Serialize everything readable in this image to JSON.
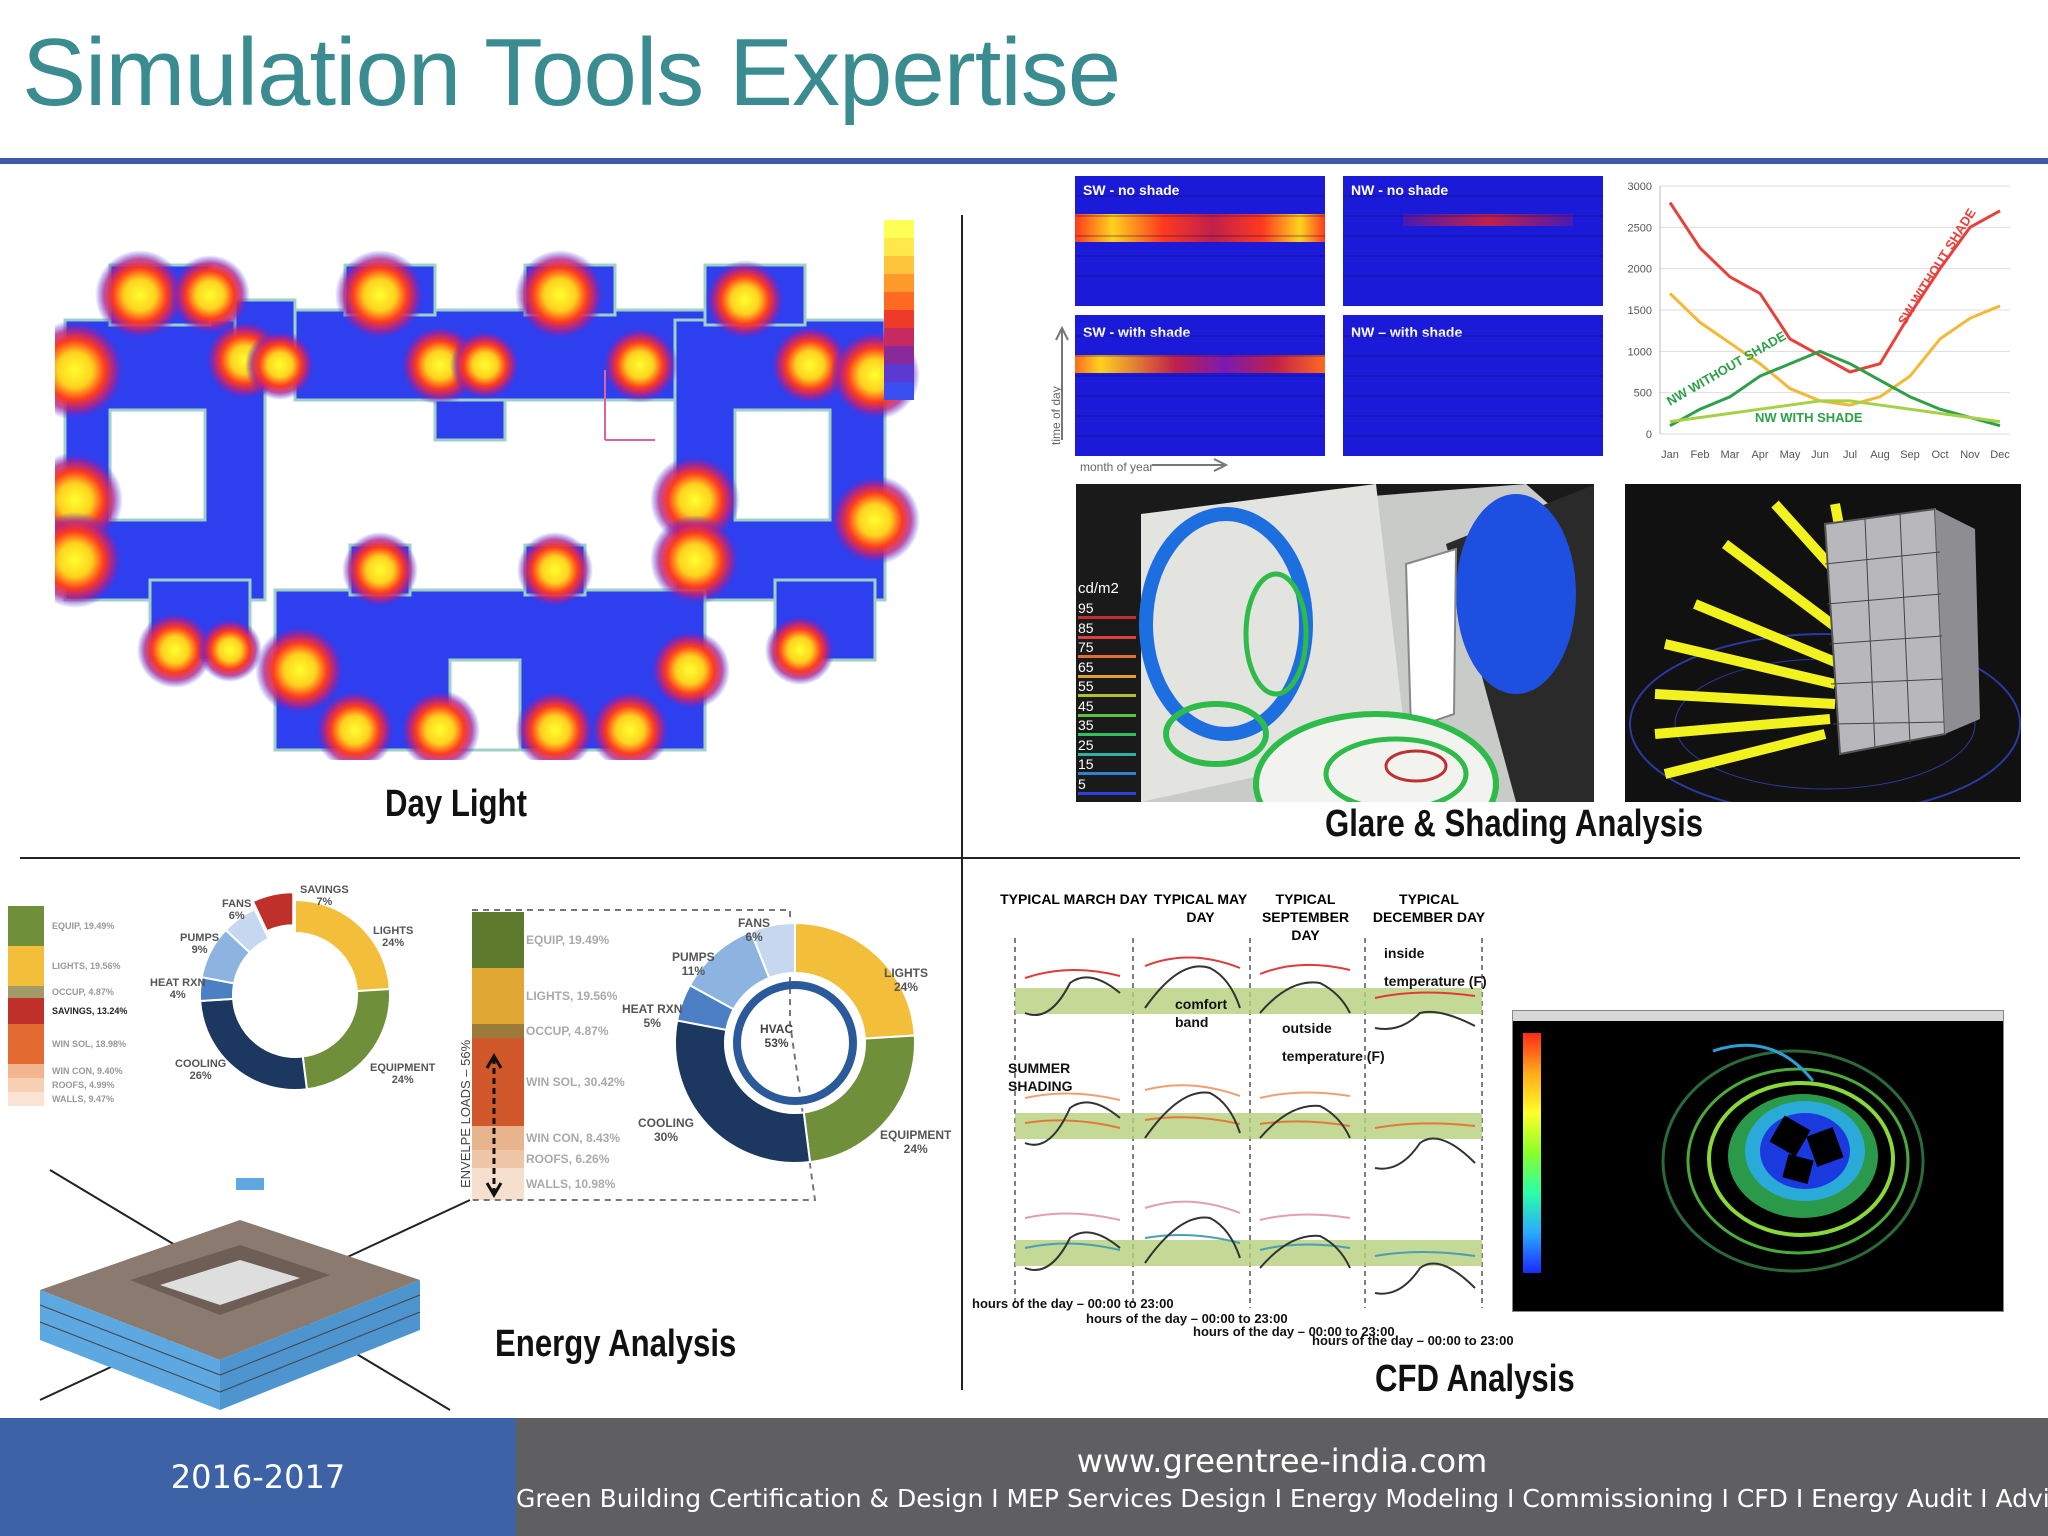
{
  "title": "Simulation Tools Expertise",
  "sections": {
    "daylight": "Day Light",
    "glare": "Glare & Shading Analysis",
    "energy": "Energy Analysis",
    "cfd": "CFD Analysis"
  },
  "glare_panels": {
    "sw_no_shade": "SW - no shade",
    "nw_no_shade": "NW - no shade",
    "sw_with_shade": "SW  - with shade",
    "nw_with_shade": "NW – with shade",
    "time_of_day": "time of day",
    "month_of_year": "month of year"
  },
  "glare_scale": {
    "unit": "cd/m2",
    "ticks": [
      "95",
      "85",
      "75",
      "65",
      "55",
      "45",
      "35",
      "25",
      "15",
      "5"
    ]
  },
  "energy_legend_small": [
    {
      "label": "EQUIP, 19.49%",
      "color": "#6f8f3a"
    },
    {
      "label": "LIGHTS, 19.56%",
      "color": "#f3bf3a"
    },
    {
      "label": "OCCUP, 4.87%",
      "color": "#a39a6a"
    },
    {
      "label": "SAVINGS, 13.24%",
      "color": "#c0302a"
    },
    {
      "label": "WIN SOL, 18.98%",
      "color": "#e36b32"
    },
    {
      "label": "WIN CON, 9.40%",
      "color": "#f3b58e"
    },
    {
      "label": "ROOFS, 4.99%",
      "color": "#f7cfb3"
    },
    {
      "label": "WALLS, 9.47%",
      "color": "#fae3d3"
    }
  ],
  "energy_stack": [
    {
      "label": "EQUIP, 19.49%",
      "color": "#5d7a2c"
    },
    {
      "label": "LIGHTS, 19.56%",
      "color": "#e1a733"
    },
    {
      "label": "OCCUP, 4.87%",
      "color": "#9c7b3a"
    },
    {
      "label": "WIN SOL, 30.42%",
      "color": "#d0582a"
    },
    {
      "label": "WIN CON, 8.43%",
      "color": "#e8b48e"
    },
    {
      "label": "ROOFS, 6.26%",
      "color": "#efc7a8"
    },
    {
      "label": "WALLS, 10.98%",
      "color": "#f6dfcc"
    }
  ],
  "envelope_label": "ENVELPE LOADS – 56%",
  "donut1": [
    {
      "label": "LIGHTS",
      "pct": "24%",
      "value": 24,
      "color": "#f3bf3a"
    },
    {
      "label": "EQUIPMENT",
      "pct": "24%",
      "value": 24,
      "color": "#6f8f3a"
    },
    {
      "label": "COOLING",
      "pct": "26%",
      "value": 26,
      "color": "#1c3760"
    },
    {
      "label": "HEAT RXN",
      "pct": "4%",
      "value": 4,
      "color": "#4d7fc4"
    },
    {
      "label": "PUMPS",
      "pct": "9%",
      "value": 9,
      "color": "#8db3e0"
    },
    {
      "label": "FANS",
      "pct": "6%",
      "value": 6,
      "color": "#c6d8ef"
    },
    {
      "label": "SAVINGS",
      "pct": "7%",
      "value": 7,
      "color": "#c0302a"
    }
  ],
  "donut2": [
    {
      "label": "LIGHTS",
      "pct": "24%",
      "value": 24,
      "color": "#f3bf3a"
    },
    {
      "label": "EQUIPMENT",
      "pct": "24%",
      "value": 24,
      "color": "#6f8f3a"
    },
    {
      "label": "COOLING",
      "pct": "30%",
      "value": 30,
      "color": "#1c3760"
    },
    {
      "label": "HEAT RXN",
      "pct": "5%",
      "value": 5,
      "color": "#4d7fc4"
    },
    {
      "label": "PUMPS",
      "pct": "11%",
      "value": 11,
      "color": "#8db3e0"
    },
    {
      "label": "FANS",
      "pct": "6%",
      "value": 6,
      "color": "#c6d8ef"
    }
  ],
  "donut2_center": {
    "label": "HVAC",
    "pct": "53%"
  },
  "chart_data": {
    "type": "line",
    "categories": [
      "Jan",
      "Feb",
      "Mar",
      "Apr",
      "May",
      "Jun",
      "Jul",
      "Aug",
      "Sep",
      "Oct",
      "Nov",
      "Dec"
    ],
    "ylim": [
      0,
      3000
    ],
    "yticks": [
      "0",
      "500",
      "1000",
      "1500",
      "2000",
      "2500",
      "3000"
    ],
    "series": [
      {
        "name": "SW WITHOUT SHADE",
        "color": "#e8403a",
        "values": [
          2800,
          2250,
          1900,
          1700,
          1150,
          950,
          750,
          850,
          1450,
          2000,
          2500,
          2700
        ]
      },
      {
        "name": "",
        "color": "#f3b834",
        "values": [
          1700,
          1350,
          1100,
          850,
          550,
          400,
          350,
          450,
          700,
          1150,
          1400,
          1550
        ]
      },
      {
        "name": "NW WITHOUT SHADE",
        "color": "#2ea04a",
        "values": [
          100,
          300,
          450,
          700,
          850,
          1000,
          850,
          650,
          450,
          300,
          200,
          100
        ]
      },
      {
        "name": "NW WITH SHADE",
        "color": "#a6d046",
        "values": [
          150,
          200,
          250,
          300,
          350,
          400,
          400,
          350,
          300,
          250,
          200,
          150
        ]
      }
    ]
  },
  "cfd_headers": [
    "TYPICAL MARCH DAY",
    "TYPICAL MAY DAY",
    "TYPICAL SEPTEMBER DAY",
    "TYPICAL DECEMBER DAY"
  ],
  "cfd_labels": {
    "inside": "inside",
    "inside_temp": "temperature (F)",
    "comfort": "comfort",
    "band": "band",
    "outside": "outside",
    "outside_temp": "temperature (F)",
    "summer": "SUMMER",
    "shading": "SHADING",
    "hours": "hours of the day – 00:00 to 23:00"
  },
  "footer": {
    "year": "2016-2017",
    "url": "www.greentree-india.com",
    "tagline": "Green Building Certification & Design I MEP Services Design I Energy Modeling I Commissioning I CFD I Energy Audit I Advisory"
  }
}
